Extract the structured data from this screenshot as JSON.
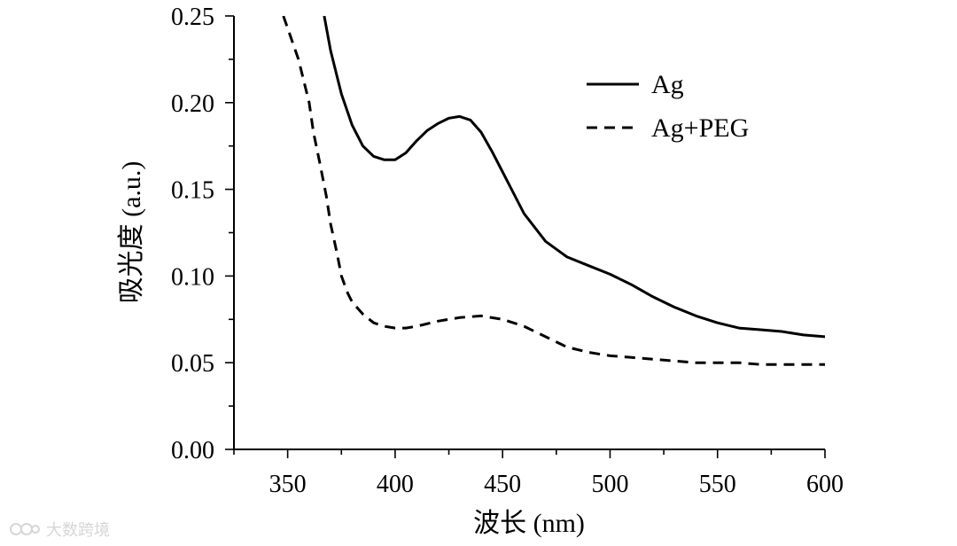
{
  "chart_data": {
    "type": "line",
    "xlabel": "波长 (nm)",
    "ylabel": "吸光度 (a.u.)",
    "xlim": [
      325,
      600
    ],
    "ylim": [
      0,
      0.25
    ],
    "xticks": [
      350,
      400,
      450,
      500,
      550,
      600
    ],
    "yticks": [
      0.0,
      0.05,
      0.1,
      0.15,
      0.2,
      0.25
    ],
    "xtick_labels": [
      "350",
      "400",
      "450",
      "500",
      "550",
      "600"
    ],
    "ytick_labels": [
      "0.00",
      "0.05",
      "0.10",
      "0.15",
      "0.20",
      "0.25"
    ],
    "grid": false,
    "legend_position": "top-right",
    "series": [
      {
        "name": "Ag",
        "style": "solid",
        "color": "#000000",
        "x": [
          367,
          370,
          375,
          380,
          385,
          390,
          395,
          400,
          405,
          410,
          415,
          420,
          425,
          430,
          435,
          440,
          445,
          450,
          455,
          460,
          470,
          480,
          490,
          500,
          510,
          520,
          530,
          540,
          550,
          560,
          570,
          580,
          590,
          600
        ],
        "y": [
          0.25,
          0.23,
          0.205,
          0.187,
          0.175,
          0.169,
          0.167,
          0.167,
          0.171,
          0.178,
          0.184,
          0.188,
          0.191,
          0.192,
          0.19,
          0.183,
          0.172,
          0.16,
          0.148,
          0.136,
          0.12,
          0.111,
          0.106,
          0.101,
          0.095,
          0.088,
          0.082,
          0.077,
          0.073,
          0.07,
          0.069,
          0.068,
          0.066,
          0.065
        ]
      },
      {
        "name": "Ag+PEG",
        "style": "dashed",
        "color": "#000000",
        "x": [
          348,
          350,
          355,
          360,
          362,
          365,
          368,
          370,
          373,
          375,
          378,
          380,
          385,
          390,
          395,
          400,
          405,
          410,
          420,
          430,
          440,
          450,
          460,
          470,
          480,
          490,
          500,
          510,
          520,
          530,
          540,
          550,
          560,
          570,
          580,
          590,
          600
        ],
        "y": [
          0.25,
          0.243,
          0.225,
          0.2,
          0.183,
          0.165,
          0.146,
          0.13,
          0.113,
          0.1,
          0.09,
          0.085,
          0.078,
          0.073,
          0.071,
          0.07,
          0.07,
          0.071,
          0.074,
          0.076,
          0.077,
          0.075,
          0.071,
          0.065,
          0.059,
          0.056,
          0.054,
          0.053,
          0.052,
          0.051,
          0.05,
          0.05,
          0.05,
          0.049,
          0.049,
          0.049,
          0.049
        ]
      }
    ]
  },
  "watermark": {
    "text": "大数跨境",
    "logo_color": "#d6d6d6"
  }
}
